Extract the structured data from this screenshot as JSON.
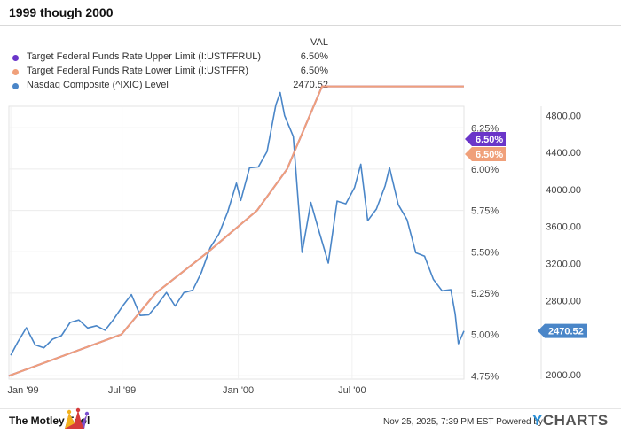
{
  "title": "1999 though 2000",
  "legend": {
    "header": "VAL",
    "items": [
      {
        "name": "Target Federal Funds Rate Upper Limit (I:USTFFRUL)",
        "value": "6.50%",
        "color": "#6a35c9"
      },
      {
        "name": "Target Federal Funds Rate Lower Limit (I:USTFFR)",
        "value": "6.50%",
        "color": "#f0a07a"
      },
      {
        "name": "Nasdaq Composite (^IXIC) Level",
        "value": "2470.52",
        "color": "#4a86c8"
      }
    ]
  },
  "footer": {
    "logo": "The Motley Fool",
    "stamp": "Nov 25, 2025, 7:39 PM EST Powered by",
    "brand_y": "Y",
    "brand_rest": "CHARTS"
  },
  "chart_data": {
    "type": "line",
    "x_ticks": [
      "Jan '99",
      "Jul '99",
      "Jan '00",
      "Jul '00"
    ],
    "x_range": [
      "1999-01-01",
      "2000-12-29"
    ],
    "left_axis": {
      "ticks": [
        "6.25%",
        "6.00%",
        "5.75%",
        "5.50%",
        "5.25%",
        "5.00%",
        "4.75%"
      ],
      "range": [
        4.73,
        6.38
      ],
      "unit": "%"
    },
    "right_axis": {
      "ticks": [
        "4800.00",
        "4400.00",
        "4000.00",
        "3600.00",
        "3200.00",
        "2800.00",
        "2000.00"
      ],
      "range": [
        1950,
        4900
      ]
    },
    "grid": true,
    "series": [
      {
        "name": "Target Federal Funds Rate Upper Limit (I:USTFFRUL)",
        "axis": "left",
        "color": "#6a35c9",
        "points": [
          [
            "1999-01-01",
            4.75
          ],
          [
            "1999-06-30",
            5.0
          ],
          [
            "1999-08-24",
            5.25
          ],
          [
            "1999-11-16",
            5.5
          ],
          [
            "2000-02-02",
            5.75
          ],
          [
            "2000-03-21",
            6.0
          ],
          [
            "2000-05-16",
            6.5
          ],
          [
            "2000-12-29",
            6.5
          ]
        ],
        "end_label": "6.50%"
      },
      {
        "name": "Target Federal Funds Rate Lower Limit (I:USTFFR)",
        "axis": "left",
        "color": "#f0a07a",
        "points": [
          [
            "1999-01-01",
            4.75
          ],
          [
            "1999-06-30",
            5.0
          ],
          [
            "1999-08-24",
            5.25
          ],
          [
            "1999-11-16",
            5.5
          ],
          [
            "2000-02-02",
            5.75
          ],
          [
            "2000-03-21",
            6.0
          ],
          [
            "2000-05-16",
            6.5
          ],
          [
            "2000-12-29",
            6.5
          ]
        ],
        "end_label": "6.50%"
      },
      {
        "name": "Nasdaq Composite (^IXIC) Level",
        "axis": "right",
        "color": "#4a86c8",
        "points": [
          [
            "1999-01-04",
            2208
          ],
          [
            "1999-01-15",
            2348
          ],
          [
            "1999-01-29",
            2505
          ],
          [
            "1999-02-12",
            2320
          ],
          [
            "1999-02-26",
            2288
          ],
          [
            "1999-03-12",
            2381
          ],
          [
            "1999-03-26",
            2419
          ],
          [
            "1999-04-09",
            2563
          ],
          [
            "1999-04-23",
            2590
          ],
          [
            "1999-05-07",
            2503
          ],
          [
            "1999-05-21",
            2527
          ],
          [
            "1999-06-04",
            2478
          ],
          [
            "1999-06-18",
            2600
          ],
          [
            "1999-07-02",
            2741
          ],
          [
            "1999-07-16",
            2864
          ],
          [
            "1999-07-30",
            2638
          ],
          [
            "1999-08-13",
            2645
          ],
          [
            "1999-08-27",
            2758
          ],
          [
            "1999-09-10",
            2887
          ],
          [
            "1999-09-24",
            2740
          ],
          [
            "1999-10-08",
            2886
          ],
          [
            "1999-10-22",
            2911
          ],
          [
            "1999-11-05",
            3102
          ],
          [
            "1999-11-19",
            3370
          ],
          [
            "1999-12-03",
            3520
          ],
          [
            "1999-12-17",
            3755
          ],
          [
            "1999-12-31",
            4069
          ],
          [
            "2000-01-07",
            3882
          ],
          [
            "2000-01-21",
            4235
          ],
          [
            "2000-02-04",
            4244
          ],
          [
            "2000-02-18",
            4411
          ],
          [
            "2000-03-03",
            4914
          ],
          [
            "2000-03-10",
            5048
          ],
          [
            "2000-03-17",
            4798
          ],
          [
            "2000-03-31",
            4573
          ],
          [
            "2000-04-14",
            3321
          ],
          [
            "2000-04-28",
            3860
          ],
          [
            "2000-05-12",
            3529
          ],
          [
            "2000-05-26",
            3205
          ],
          [
            "2000-06-09",
            3874
          ],
          [
            "2000-06-23",
            3845
          ],
          [
            "2000-07-07",
            4023
          ],
          [
            "2000-07-17",
            4274
          ],
          [
            "2000-07-28",
            3663
          ],
          [
            "2000-08-11",
            3789
          ],
          [
            "2000-08-25",
            4042
          ],
          [
            "2000-09-01",
            4235
          ],
          [
            "2000-09-15",
            3835
          ],
          [
            "2000-09-29",
            3672
          ],
          [
            "2000-10-13",
            3316
          ],
          [
            "2000-10-27",
            3278
          ],
          [
            "2000-11-10",
            3028
          ],
          [
            "2000-11-24",
            2905
          ],
          [
            "2000-12-08",
            2917
          ],
          [
            "2000-12-15",
            2654
          ],
          [
            "2000-12-20",
            2333
          ],
          [
            "2000-12-29",
            2470.52
          ]
        ],
        "end_label": "2470.52"
      }
    ]
  }
}
